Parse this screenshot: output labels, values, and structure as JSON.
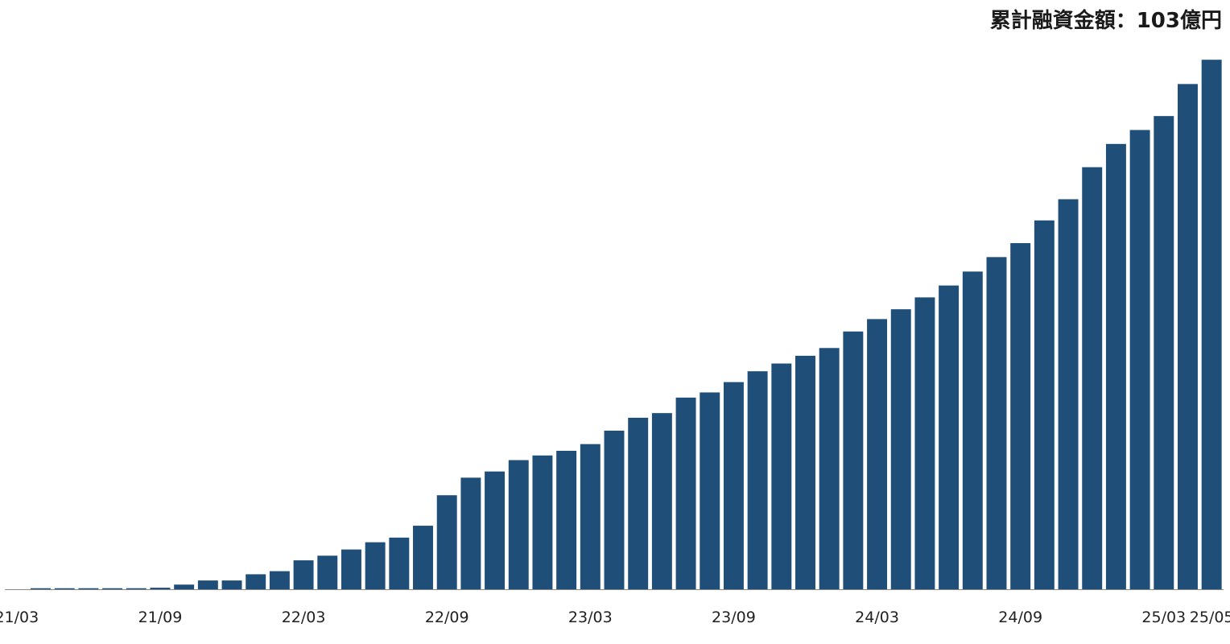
{
  "chart_data": {
    "type": "bar",
    "title": "累計融資金額：103億円",
    "xlabel": "",
    "ylabel": "",
    "bar_color": "#1f4e79",
    "ylim": [
      0,
      103
    ],
    "grid": false,
    "legend": "none",
    "categories": [
      "21/03",
      "21/04",
      "21/05",
      "21/06",
      "21/07",
      "21/08",
      "21/09",
      "21/10",
      "21/11",
      "21/12",
      "22/01",
      "22/02",
      "22/03",
      "22/04",
      "22/05",
      "22/06",
      "22/07",
      "22/08",
      "22/09",
      "22/10",
      "22/11",
      "22/12",
      "23/01",
      "23/02",
      "23/03",
      "23/04",
      "23/05",
      "23/06",
      "23/07",
      "23/08",
      "23/09",
      "23/10",
      "23/11",
      "23/12",
      "24/01",
      "24/02",
      "24/03",
      "24/04",
      "24/05",
      "24/06",
      "24/07",
      "24/08",
      "24/09",
      "24/10",
      "24/11",
      "24/12",
      "25/01",
      "25/02",
      "25/03",
      "25/04",
      "25/05"
    ],
    "values": [
      0.0,
      0.2,
      0.2,
      0.2,
      0.2,
      0.2,
      0.3,
      0.9,
      1.7,
      1.7,
      2.9,
      3.5,
      5.6,
      6.5,
      7.7,
      9.1,
      10.0,
      12.3,
      18.2,
      21.6,
      22.8,
      25.0,
      25.9,
      26.8,
      28.1,
      30.7,
      33.2,
      34.1,
      37.1,
      38.1,
      40.1,
      42.2,
      43.7,
      45.2,
      46.7,
      49.9,
      52.3,
      54.2,
      56.5,
      58.8,
      61.5,
      64.3,
      67.0,
      71.4,
      75.5,
      81.7,
      86.2,
      88.9,
      91.6,
      97.8,
      102.5
    ],
    "tick_labels": [
      "21/03",
      "21/09",
      "22/03",
      "22/09",
      "23/03",
      "23/09",
      "24/03",
      "24/09",
      "25/03",
      "25/05"
    ]
  }
}
